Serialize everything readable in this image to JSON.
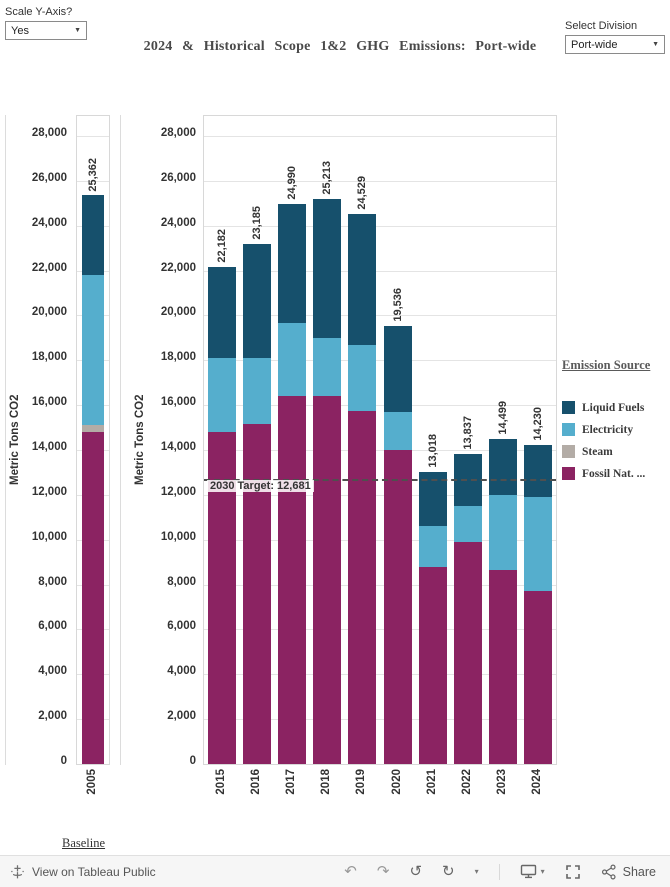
{
  "title": "2024 & Historical Scope 1&2 GHG Emissions: Port-wide",
  "controls": {
    "scale_y_axis": {
      "label": "Scale Y-Axis?",
      "value": "Yes"
    },
    "select_division": {
      "label": "Select Division",
      "value": "Port-wide"
    }
  },
  "legend": {
    "title": "Emission Source",
    "items": [
      {
        "label": "Liquid Fuels",
        "color": "#16506c"
      },
      {
        "label": "Electricity",
        "color": "#55aecd"
      },
      {
        "label": "Steam",
        "color": "#b3aca6"
      },
      {
        "label": "Fossil Nat. ...",
        "color": "#8b2362"
      }
    ]
  },
  "baseline_axis_label": "Baseline",
  "toolbar": {
    "view_text": "View on Tableau Public",
    "share_label": "Share"
  },
  "chart_data": [
    {
      "type": "bar",
      "name": "baseline",
      "title": "Baseline",
      "categories": [
        "2005"
      ],
      "ylabel": "Metric Tons CO2",
      "ylim": [
        0,
        28000
      ],
      "ytick_step": 2000,
      "grid": true,
      "series": [
        {
          "name": "Fossil Nat. ...",
          "color": "#8b2362",
          "values": [
            14800
          ]
        },
        {
          "name": "Steam",
          "color": "#b3aca6",
          "values": [
            310
          ]
        },
        {
          "name": "Electricity",
          "color": "#55aecd",
          "values": [
            6690
          ]
        },
        {
          "name": "Liquid Fuels",
          "color": "#16506c",
          "values": [
            3562
          ]
        }
      ],
      "totals": [
        25362
      ],
      "total_labels": [
        "25,362"
      ]
    },
    {
      "type": "bar",
      "name": "historical",
      "categories": [
        "2015",
        "2016",
        "2017",
        "2018",
        "2019",
        "2020",
        "2021",
        "2022",
        "2023",
        "2024"
      ],
      "ylabel": "Metric Tons CO2",
      "ylim": [
        0,
        28000
      ],
      "ytick_step": 2000,
      "grid": true,
      "legend_position": "right",
      "series": [
        {
          "name": "Fossil Nat. ...",
          "color": "#8b2362",
          "values": [
            14800,
            15150,
            16400,
            16400,
            15750,
            14000,
            8800,
            9900,
            8650,
            7700
          ]
        },
        {
          "name": "Steam",
          "color": "#b3aca6",
          "values": [
            0,
            0,
            0,
            0,
            0,
            0,
            0,
            0,
            0,
            0
          ]
        },
        {
          "name": "Electricity",
          "color": "#55aecd",
          "values": [
            3300,
            2950,
            3250,
            2600,
            2950,
            1700,
            1800,
            1600,
            3350,
            4200
          ]
        },
        {
          "name": "Liquid Fuels",
          "color": "#16506c",
          "values": [
            4082,
            5085,
            5340,
            6213,
            5829,
            3836,
            2418,
            2337,
            2499,
            2330
          ]
        }
      ],
      "totals": [
        22182,
        23185,
        24990,
        25213,
        24529,
        19536,
        13018,
        13837,
        14499,
        14230
      ],
      "total_labels": [
        "22,182",
        "23,185",
        "24,990",
        "25,213",
        "24,529",
        "19,536",
        "13,018",
        "13,837",
        "14,499",
        "14,230"
      ],
      "target_line": {
        "value": 12681,
        "label": "2030 Target: 12,681"
      }
    }
  ]
}
